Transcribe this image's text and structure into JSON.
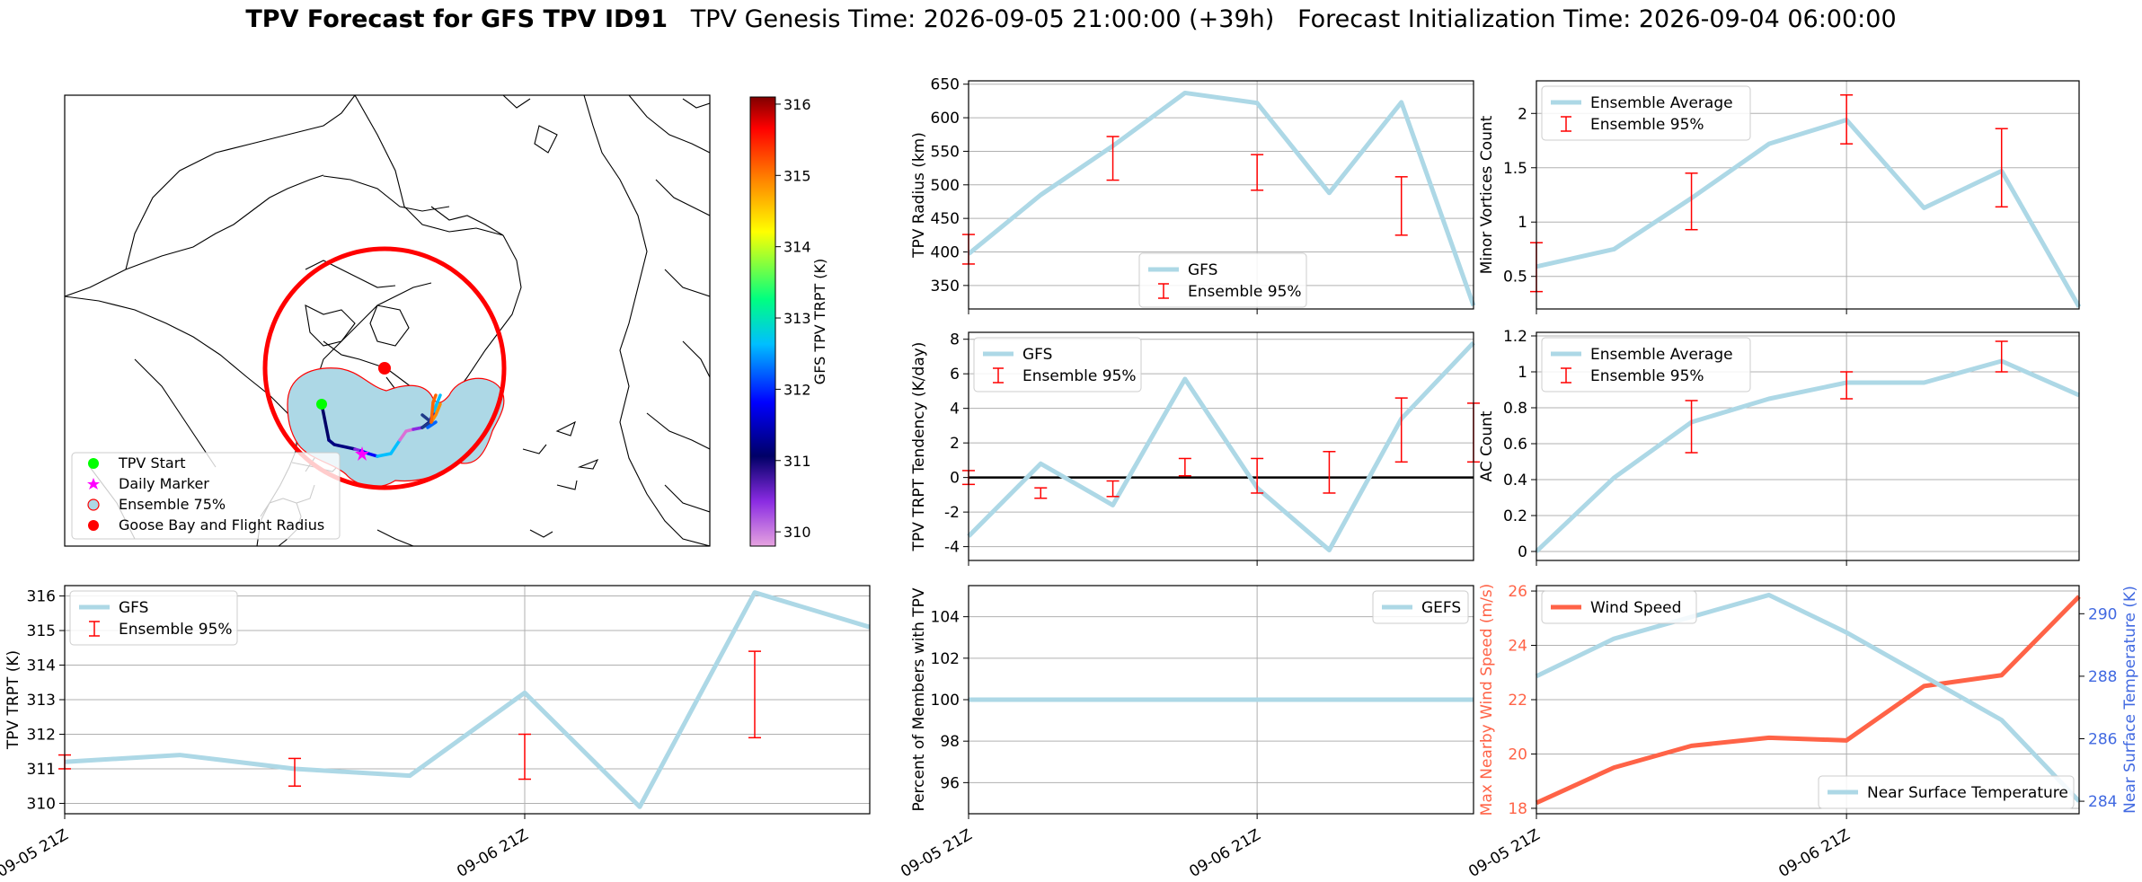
{
  "title": {
    "bold": "TPV Forecast for GFS TPV ID91",
    "genesis": "TPV Genesis Time: 2026-09-05 21:00:00 (+39h)",
    "init": "Forecast Initialization Time: 2026-09-04 06:00:00"
  },
  "colors": {
    "main": "#add8e6",
    "err": "#ff0000",
    "wind": "#ff6347",
    "temp": "#4169e1",
    "goose": "#ff0000"
  },
  "chart_data": [
    {
      "id": "map",
      "type": "map",
      "legend": [
        "TPV Start",
        "Daily Marker",
        "Ensemble 75%",
        "Goose Bay and Flight Radius"
      ],
      "colorbar": {
        "label": "GFS TPV TRPT (K)",
        "ticks": [
          310,
          311,
          312,
          313,
          314,
          315,
          316
        ],
        "range": [
          309.8,
          316.1
        ]
      }
    },
    {
      "id": "radius",
      "type": "line",
      "x": [
        0,
        0.75,
        1.5,
        2.25,
        3,
        3.75,
        4.5,
        5.25
      ],
      "ylabel": "TPV Radius (km)",
      "ylim": [
        315,
        655
      ],
      "yticks": [
        350,
        400,
        450,
        500,
        550,
        600,
        650
      ],
      "series": [
        {
          "name": "GFS",
          "values": [
            397,
            485,
            558,
            637,
            622,
            488,
            623,
            320
          ]
        }
      ],
      "errorbars": {
        "name": "Ensemble 95%",
        "x": [
          0,
          1.5,
          3,
          4.5
        ],
        "low": [
          382,
          507,
          492,
          425
        ],
        "high": [
          426,
          572,
          545,
          512
        ]
      },
      "legend_pos": "lower center"
    },
    {
      "id": "minor",
      "type": "line",
      "x": [
        0,
        0.75,
        1.5,
        2.25,
        3,
        3.75,
        4.5,
        5.25
      ],
      "ylabel": "Minor Vortices Count",
      "ylim": [
        0.2,
        2.3
      ],
      "yticks": [
        0.5,
        1.0,
        1.5,
        2.0
      ],
      "series": [
        {
          "name": "Ensemble Average",
          "values": [
            0.59,
            0.75,
            1.22,
            1.72,
            1.94,
            1.13,
            1.47,
            0.22
          ]
        }
      ],
      "errorbars": {
        "name": "Ensemble 95%",
        "x": [
          0,
          1.5,
          3,
          4.5
        ],
        "low": [
          0.36,
          0.93,
          1.72,
          1.14
        ],
        "high": [
          0.81,
          1.45,
          2.17,
          1.86
        ]
      },
      "legend_pos": "upper left"
    },
    {
      "id": "tendency",
      "type": "line",
      "x": [
        0,
        0.75,
        1.5,
        2.25,
        3,
        3.75,
        4.5,
        5.25
      ],
      "ylabel": "TPV TRPT Tendency (K/day)",
      "ylim": [
        -4.8,
        8.4
      ],
      "yticks": [
        -4,
        -2,
        0,
        2,
        4,
        6,
        8
      ],
      "hline": 0,
      "series": [
        {
          "name": "GFS",
          "values": [
            -3.4,
            0.8,
            -1.6,
            5.7,
            -0.6,
            -4.2,
            3.4,
            7.8
          ]
        }
      ],
      "errorbars": {
        "name": "Ensemble 95%",
        "x": [
          0,
          0.75,
          1.5,
          2.25,
          3,
          3.75,
          4.5,
          5.25
        ],
        "low": [
          -0.4,
          -1.2,
          -1.1,
          0.1,
          -0.9,
          -0.9,
          0.9,
          0.9
        ],
        "high": [
          0.4,
          -0.6,
          -0.2,
          1.1,
          1.1,
          1.5,
          4.6,
          4.3
        ]
      },
      "legend_pos": "upper left"
    },
    {
      "id": "ac",
      "type": "line",
      "x": [
        0,
        0.75,
        1.5,
        2.25,
        3,
        3.75,
        4.5,
        5.25
      ],
      "ylabel": "AC Count",
      "ylim": [
        -0.05,
        1.22
      ],
      "yticks": [
        0.0,
        0.2,
        0.4,
        0.6,
        0.8,
        1.0,
        1.2
      ],
      "series": [
        {
          "name": "Ensemble Average",
          "values": [
            0.0,
            0.41,
            0.72,
            0.85,
            0.94,
            0.94,
            1.06,
            0.87
          ]
        }
      ],
      "errorbars": {
        "name": "Ensemble 95%",
        "x": [
          1.5,
          3,
          4.5
        ],
        "low": [
          0.55,
          0.85,
          1.0
        ],
        "high": [
          0.84,
          1.0,
          1.17
        ]
      },
      "legend_pos": "upper left"
    },
    {
      "id": "trpt",
      "type": "line",
      "x": [
        0,
        0.75,
        1.5,
        2.25,
        3,
        3.75,
        4.5,
        5.25
      ],
      "ylabel": "TPV TRPT (K)",
      "ylim": [
        309.7,
        316.3
      ],
      "yticks": [
        310,
        311,
        312,
        313,
        314,
        315,
        316
      ],
      "xticks": [
        {
          "x": 0,
          "label": "09-05 21Z"
        },
        {
          "x": 3,
          "label": "09-06 21Z"
        }
      ],
      "series": [
        {
          "name": "GFS",
          "values": [
            311.2,
            311.4,
            311.0,
            310.8,
            313.2,
            309.9,
            316.1,
            315.1
          ]
        }
      ],
      "errorbars": {
        "name": "Ensemble 95%",
        "x": [
          0,
          1.5,
          3,
          4.5
        ],
        "low": [
          311.0,
          310.5,
          310.7,
          311.9
        ],
        "high": [
          311.4,
          311.3,
          312.0,
          314.4
        ]
      },
      "legend_pos": "upper left"
    },
    {
      "id": "percent",
      "type": "line",
      "x": [
        0,
        0.75,
        1.5,
        2.25,
        3,
        3.75,
        4.5,
        5.25
      ],
      "ylabel": "Percent of Members with TPV",
      "ylim": [
        94.5,
        105.5
      ],
      "yticks": [
        96,
        98,
        100,
        102,
        104
      ],
      "xticks": [
        {
          "x": 0,
          "label": "09-05 21Z"
        },
        {
          "x": 3,
          "label": "09-06 21Z"
        }
      ],
      "series": [
        {
          "name": "GEFS",
          "values": [
            100,
            100,
            100,
            100,
            100,
            100,
            100,
            100
          ]
        }
      ],
      "legend_pos": "upper right"
    },
    {
      "id": "wind_temp",
      "type": "line",
      "x": [
        0,
        0.75,
        1.5,
        2.25,
        3,
        3.75,
        4.5,
        5.25
      ],
      "ylabel_left": "Max Nearby Wind Speed (m/s)",
      "ylim_left": [
        17.8,
        26.2
      ],
      "yticks_left": [
        18,
        20,
        22,
        24,
        26
      ],
      "ylabel_right": "Near Surface Temperature (K)",
      "ylim_right": [
        283.6,
        290.9
      ],
      "yticks_right": [
        284,
        286,
        288,
        290
      ],
      "xticks": [
        {
          "x": 0,
          "label": "09-05 21Z"
        },
        {
          "x": 3,
          "label": "09-06 21Z"
        }
      ],
      "series": [
        {
          "name": "Wind Speed",
          "axis": "left",
          "values": [
            18.2,
            19.5,
            20.3,
            20.6,
            20.5,
            22.5,
            22.9,
            25.8
          ]
        },
        {
          "name": "Near Surface Temperature",
          "axis": "right",
          "values": [
            288.0,
            289.2,
            289.9,
            290.6,
            289.4,
            288.0,
            286.6,
            284.0
          ]
        }
      ],
      "legend_pos": "upper left / lower right"
    }
  ]
}
